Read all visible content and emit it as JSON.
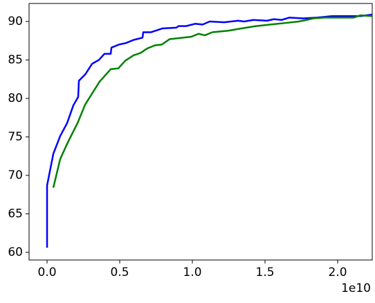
{
  "chart_data": {
    "type": "line",
    "series": [
      {
        "color": "#0000ff",
        "x": [
          0,
          0,
          430000000.0,
          900000000.0,
          1380000000.0,
          1810000000.0,
          2140000000.0,
          2190000000.0,
          2620000000.0,
          3100000000.0,
          3570000000.0,
          3950000000.0,
          4380000000.0,
          4430000000.0,
          4950000000.0,
          5430000000.0,
          5950000000.0,
          6570000000.0,
          6620000000.0,
          7140000000.0,
          7950000000.0,
          8900000000.0,
          9050000000.0,
          9570000000.0,
          10190000000.0,
          10710000000.0,
          11190000000.0,
          12190000000.0,
          13140000000.0,
          13570000000.0,
          14190000000.0,
          15140000000.0,
          15620000000.0,
          16140000000.0,
          16670000000.0,
          17620000000.0,
          18570000000.0,
          19620000000.0,
          20570000000.0,
          21570000000.0,
          22380000000.0
        ],
        "values": [
          60.6,
          68.7,
          72.8,
          75.1,
          76.8,
          79.1,
          80.2,
          82.3,
          83.1,
          84.5,
          85.0,
          85.8,
          85.8,
          86.6,
          87.0,
          87.2,
          87.6,
          87.9,
          88.6,
          88.6,
          89.1,
          89.2,
          89.4,
          89.4,
          89.7,
          89.6,
          90.0,
          89.9,
          90.1,
          90.0,
          90.2,
          90.1,
          90.3,
          90.2,
          90.5,
          90.4,
          90.5,
          90.7,
          90.7,
          90.7,
          90.9
        ]
      },
      {
        "color": "#008000",
        "x": [
          430000000.0,
          900000000.0,
          1430000000.0,
          2100000000.0,
          2620000000.0,
          3620000000.0,
          4380000000.0,
          4900000000.0,
          5380000000.0,
          5950000000.0,
          6430000000.0,
          6900000000.0,
          7430000000.0,
          7900000000.0,
          8430000000.0,
          9380000000.0,
          9900000000.0,
          10430000000.0,
          10860000000.0,
          11380000000.0,
          12480000000.0,
          13380000000.0,
          14380000000.0,
          15380000000.0,
          16380000000.0,
          17330000000.0,
          17860000000.0,
          18330000000.0,
          19100000000.0,
          20100000000.0,
          21100000000.0,
          21570000000.0,
          22380000000.0
        ],
        "values": [
          68.4,
          72.1,
          74.3,
          76.8,
          79.2,
          82.2,
          83.8,
          83.9,
          84.9,
          85.6,
          85.9,
          86.5,
          86.9,
          87.0,
          87.7,
          87.9,
          88.0,
          88.4,
          88.2,
          88.6,
          88.8,
          89.1,
          89.4,
          89.6,
          89.8,
          90.0,
          90.2,
          90.4,
          90.5,
          90.5,
          90.5,
          90.8,
          90.7
        ]
      }
    ],
    "xlim": [
      -1240000000.0,
      22380000000.0
    ],
    "ylim": [
      59.0,
      92.34
    ],
    "xticks": [
      {
        "value": 0,
        "label": "0.0"
      },
      {
        "value": 5000000000.0,
        "label": "0.5"
      },
      {
        "value": 10000000000.0,
        "label": "1.0"
      },
      {
        "value": 15000000000.0,
        "label": "1.5"
      },
      {
        "value": 20000000000.0,
        "label": "2.0"
      }
    ],
    "yticks": [
      60,
      65,
      70,
      75,
      80,
      85,
      90
    ],
    "x_offset_label": "1e10",
    "grid": false
  }
}
